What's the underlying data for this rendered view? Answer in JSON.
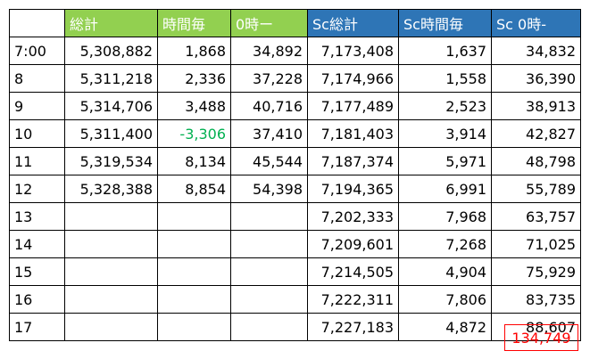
{
  "headers": [
    "",
    "総計",
    "時間毎",
    "0時ー",
    "Sc総計",
    "Sc時間毎",
    "Sc 0時-"
  ],
  "rows": [
    [
      "7:00",
      "5,308,882",
      "1,868",
      "34,892",
      "7,173,408",
      "1,637",
      "34,832"
    ],
    [
      "8",
      "5,311,218",
      "2,336",
      "37,228",
      "7,174,966",
      "1,558",
      "36,390"
    ],
    [
      "9",
      "5,314,706",
      "3,488",
      "40,716",
      "7,177,489",
      "2,523",
      "38,913"
    ],
    [
      "10",
      "5,311,400",
      "-3,306",
      "37,410",
      "7,181,403",
      "3,914",
      "42,827"
    ],
    [
      "11",
      "5,319,534",
      "8,134",
      "45,544",
      "7,187,374",
      "5,971",
      "48,798"
    ],
    [
      "12",
      "5,328,388",
      "8,854",
      "54,398",
      "7,194,365",
      "6,991",
      "55,789"
    ],
    [
      "13",
      "",
      "",
      "",
      "7,202,333",
      "7,968",
      "63,757"
    ],
    [
      "14",
      "",
      "",
      "",
      "7,209,601",
      "7,268",
      "71,025"
    ],
    [
      "15",
      "",
      "",
      "",
      "7,214,505",
      "4,904",
      "75,929"
    ],
    [
      "16",
      "",
      "",
      "",
      "7,222,311",
      "7,806",
      "83,735"
    ],
    [
      "17",
      "",
      "",
      "",
      "7,227,183",
      "4,872",
      "88,607"
    ]
  ],
  "total": "134,749",
  "colors": {
    "green_header": "#92d050",
    "blue_header": "#2e75b6",
    "negative_text": "#00b050",
    "total_text": "#ff0000"
  }
}
